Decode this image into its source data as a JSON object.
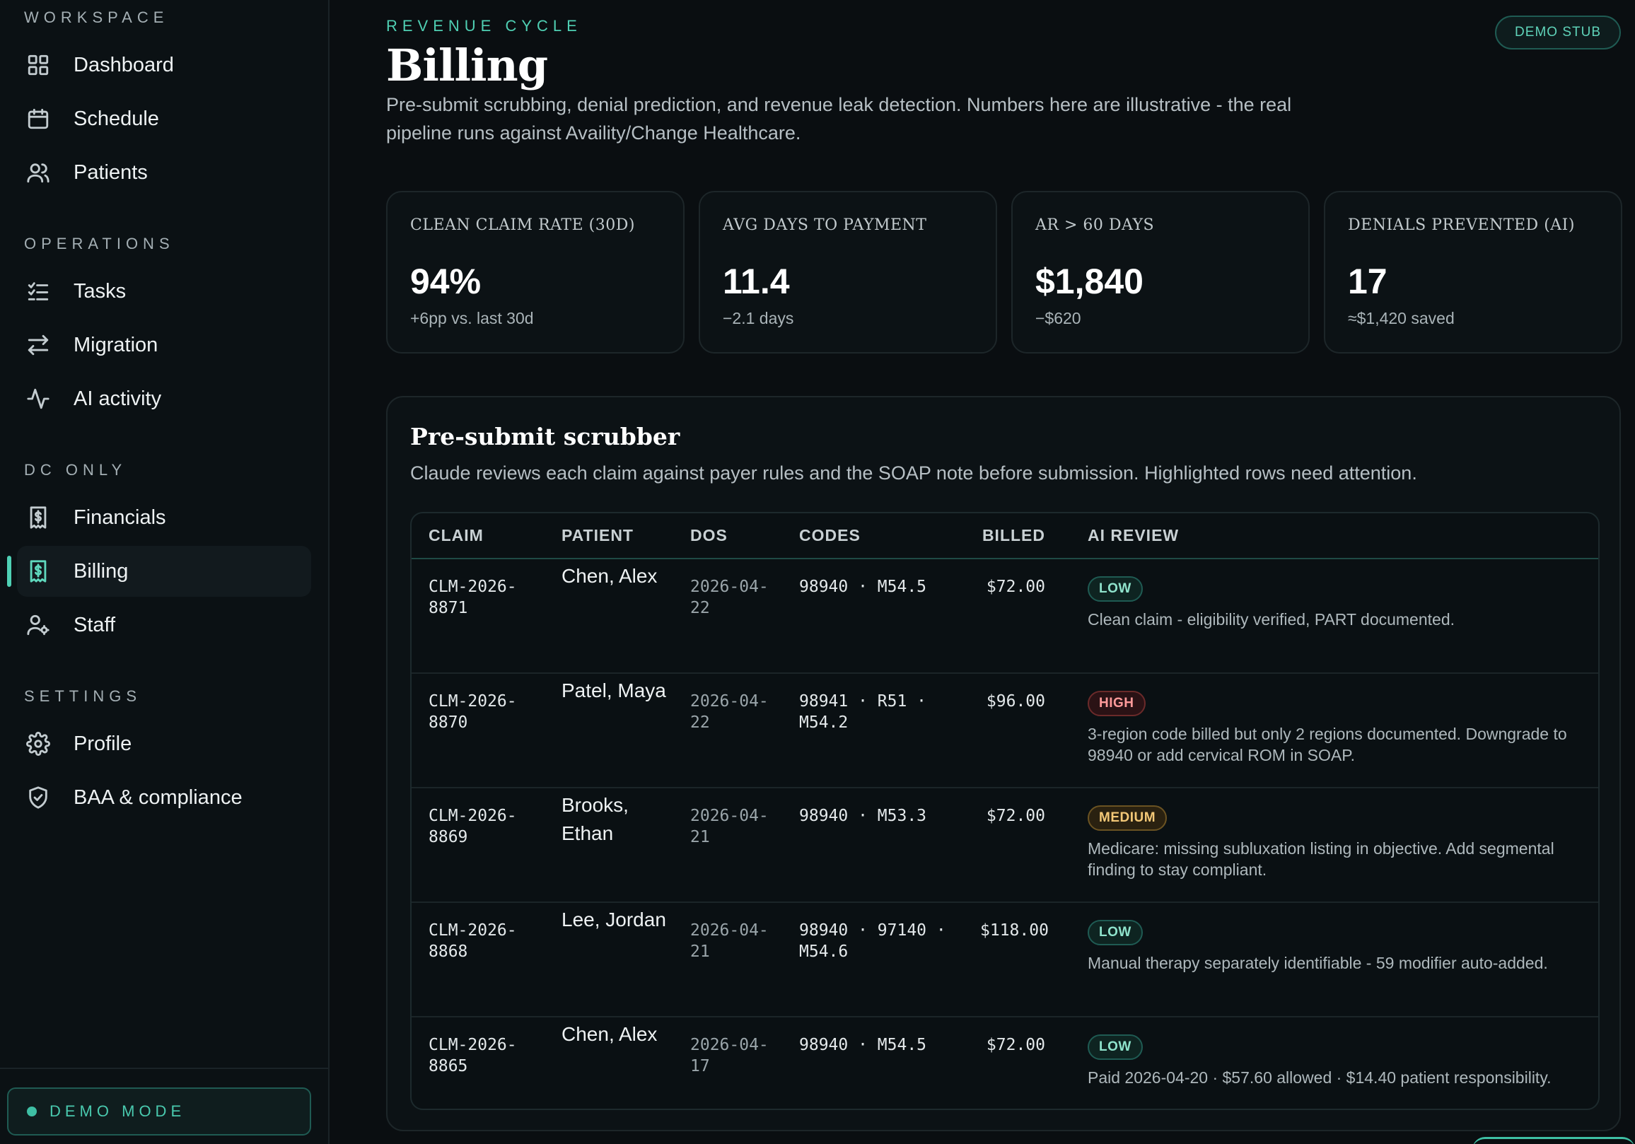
{
  "sidebar": {
    "sections": [
      {
        "label": "WORKSPACE",
        "items": [
          {
            "label": "Dashboard",
            "icon": "grid-icon"
          },
          {
            "label": "Schedule",
            "icon": "calendar-icon"
          },
          {
            "label": "Patients",
            "icon": "users-icon"
          }
        ]
      },
      {
        "label": "OPERATIONS",
        "items": [
          {
            "label": "Tasks",
            "icon": "checklist-icon"
          },
          {
            "label": "Migration",
            "icon": "arrows-swap-icon"
          },
          {
            "label": "AI activity",
            "icon": "activity-icon"
          }
        ]
      },
      {
        "label": "DC ONLY",
        "items": [
          {
            "label": "Financials",
            "icon": "receipt-dollar-icon"
          },
          {
            "label": "Billing",
            "icon": "receipt-dollar-icon",
            "active": true
          },
          {
            "label": "Staff",
            "icon": "user-gear-icon"
          }
        ]
      },
      {
        "label": "SETTINGS",
        "items": [
          {
            "label": "Profile",
            "icon": "gear-icon"
          },
          {
            "label": "BAA & compliance",
            "icon": "shield-check-icon"
          }
        ]
      }
    ],
    "footer": {
      "demo_mode_label": "DEMO MODE"
    }
  },
  "header": {
    "eyebrow": "REVENUE CYCLE",
    "title": "Billing",
    "description": "Pre-submit scrubbing, denial prediction, and revenue leak detection. Numbers here are illustrative - the real pipeline runs against Availity/Change Healthcare.",
    "badge": "DEMO STUB"
  },
  "kpis": [
    {
      "label": "Clean claim rate (30d)",
      "value": "94%",
      "sub": "+6pp vs. last 30d"
    },
    {
      "label": "Avg days to payment",
      "value": "11.4",
      "sub": "−2.1 days"
    },
    {
      "label": "AR > 60 days",
      "value": "$1,840",
      "sub": "−$620"
    },
    {
      "label": "Denials prevented (AI)",
      "value": "17",
      "sub": "≈$1,420 saved"
    }
  ],
  "scrubber": {
    "title": "Pre-submit scrubber",
    "description": "Claude reviews each claim against payer rules and the SOAP note before submission. Highlighted rows need attention.",
    "columns": [
      "CLAIM",
      "PATIENT",
      "DOS",
      "CODES",
      "BILLED",
      "AI REVIEW"
    ],
    "rows": [
      {
        "claim": "CLM-2026-8871",
        "patient": "Chen, Alex",
        "dos": "2026-04-22",
        "codes": "98940 · M54.5",
        "billed": "$72.00",
        "risk": "LOW",
        "risk_level": "low",
        "review": "Clean claim - eligibility verified, PART documented."
      },
      {
        "claim": "CLM-2026-8870",
        "patient": "Patel, Maya",
        "dos": "2026-04-22",
        "codes": "98941 · R51 · M54.2",
        "billed": "$96.00",
        "risk": "HIGH",
        "risk_level": "high",
        "review": "3-region code billed but only 2 regions documented. Downgrade to 98940 or add cervical ROM in SOAP."
      },
      {
        "claim": "CLM-2026-8869",
        "patient": "Brooks, Ethan",
        "dos": "2026-04-21",
        "codes": "98940 · M53.3",
        "billed": "$72.00",
        "risk": "MEDIUM",
        "risk_level": "medium",
        "review": "Medicare: missing subluxation listing in objective. Add segmental finding to stay compliant."
      },
      {
        "claim": "CLM-2026-8868",
        "patient": "Lee, Jordan",
        "dos": "2026-04-21",
        "codes": "98940 · 97140 · M54.6",
        "billed": "$118.00",
        "risk": "LOW",
        "risk_level": "low",
        "review": "Manual therapy separately identifiable - 59 modifier auto-added."
      },
      {
        "claim": "CLM-2026-8865",
        "patient": "Chen, Alex",
        "dos": "2026-04-17",
        "codes": "98940 · M54.5",
        "billed": "$72.00",
        "risk": "LOW",
        "risk_level": "low",
        "review": "Paid 2026-04-20 · $57.60 allowed · $14.40 patient responsibility."
      }
    ]
  },
  "colors": {
    "accent": "#4fd1b5",
    "background": "#0a0e11",
    "high": "#ff9a9a",
    "medium": "#f3c877"
  }
}
